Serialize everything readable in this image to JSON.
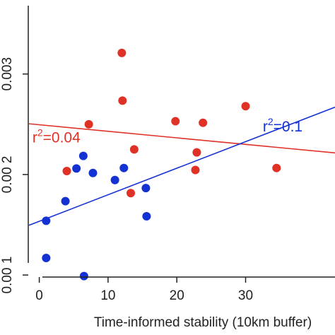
{
  "chart_data": {
    "type": "scatter",
    "xlabel": "Time-informed stability (10km buffer)",
    "ylabel": "",
    "xlim": [
      -1.5,
      43
    ],
    "ylim": [
      0.00098,
      0.00368
    ],
    "x_ticks": [
      0,
      10,
      20,
      30
    ],
    "y_ticks": [
      0.001,
      0.002,
      0.003
    ],
    "y_tick_labels": [
      "0.00 1",
      "0.00 2",
      "0.003"
    ],
    "grid": false,
    "series": [
      {
        "color": "#e03127",
        "points": [
          {
            "x": 4.0,
            "y": 0.002035
          },
          {
            "x": 7.2,
            "y": 0.0025
          },
          {
            "x": 12.0,
            "y": 0.00321
          },
          {
            "x": 12.1,
            "y": 0.002735
          },
          {
            "x": 13.3,
            "y": 0.001815
          },
          {
            "x": 13.8,
            "y": 0.00225
          },
          {
            "x": 19.8,
            "y": 0.00253
          },
          {
            "x": 22.7,
            "y": 0.002045
          },
          {
            "x": 22.9,
            "y": 0.00222
          },
          {
            "x": 23.8,
            "y": 0.002515
          },
          {
            "x": 30.0,
            "y": 0.00268
          },
          {
            "x": 34.5,
            "y": 0.002065
          }
        ],
        "fit": {
          "x": [
            -1.5,
            43
          ],
          "y": [
            0.002505,
            0.002215
          ]
        },
        "annotation": {
          "base": "r",
          "sup": "2",
          "rest": "=0.04",
          "x": -1.0,
          "y": 0.00232
        }
      },
      {
        "color": "#1432d4",
        "points": [
          {
            "x": 1.0,
            "y": 0.00117
          },
          {
            "x": 1.0,
            "y": 0.00154
          },
          {
            "x": 3.8,
            "y": 0.001735
          },
          {
            "x": 5.4,
            "y": 0.00206
          },
          {
            "x": 6.4,
            "y": 0.002185
          },
          {
            "x": 6.5,
            "y": 0.00099
          },
          {
            "x": 7.8,
            "y": 0.002015
          },
          {
            "x": 11.0,
            "y": 0.001945
          },
          {
            "x": 12.3,
            "y": 0.002065
          },
          {
            "x": 15.5,
            "y": 0.001865
          },
          {
            "x": 15.6,
            "y": 0.001585
          }
        ],
        "fit": {
          "x": [
            -1.5,
            43
          ],
          "y": [
            0.001495,
            0.00267
          ]
        },
        "annotation": {
          "base": "r",
          "sup": "2",
          "rest": "=0.1",
          "x": 32.5,
          "y": 0.00243
        }
      }
    ]
  }
}
